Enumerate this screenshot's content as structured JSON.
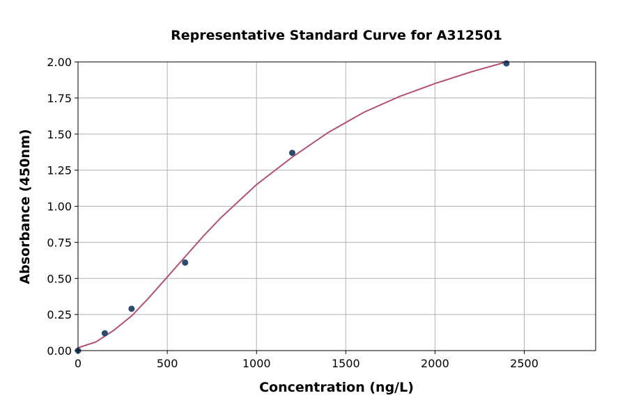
{
  "chart_data": {
    "type": "scatter",
    "title": "Representative Standard Curve for A312501",
    "xlabel": "Concentration (ng/L)",
    "ylabel": "Absorbance (450nm)",
    "xlim": [
      0,
      2900
    ],
    "ylim": [
      0,
      2.0
    ],
    "xticks": [
      0,
      500,
      1000,
      1500,
      2000,
      2500
    ],
    "yticks": [
      0.0,
      0.25,
      0.5,
      0.75,
      1.0,
      1.25,
      1.5,
      1.75,
      2.0
    ],
    "xtick_labels": [
      "0",
      "500",
      "1000",
      "1500",
      "2000",
      "2500"
    ],
    "ytick_labels": [
      "0.00",
      "0.25",
      "0.50",
      "0.75",
      "1.00",
      "1.25",
      "1.50",
      "1.75",
      "2.00"
    ],
    "grid": true,
    "points": {
      "x": [
        0,
        150,
        300,
        600,
        1200,
        2400
      ],
      "y": [
        0.0,
        0.12,
        0.29,
        0.61,
        1.37,
        1.99
      ],
      "color": "#2c4a6e"
    },
    "fit_curve": {
      "x": [
        0,
        100,
        200,
        300,
        400,
        500,
        600,
        700,
        800,
        1000,
        1200,
        1400,
        1600,
        1800,
        2000,
        2200,
        2400
      ],
      "y": [
        0.02,
        0.06,
        0.14,
        0.24,
        0.37,
        0.51,
        0.65,
        0.79,
        0.92,
        1.15,
        1.34,
        1.51,
        1.65,
        1.76,
        1.85,
        1.93,
        2.0
      ],
      "color": "#b5506e"
    }
  }
}
